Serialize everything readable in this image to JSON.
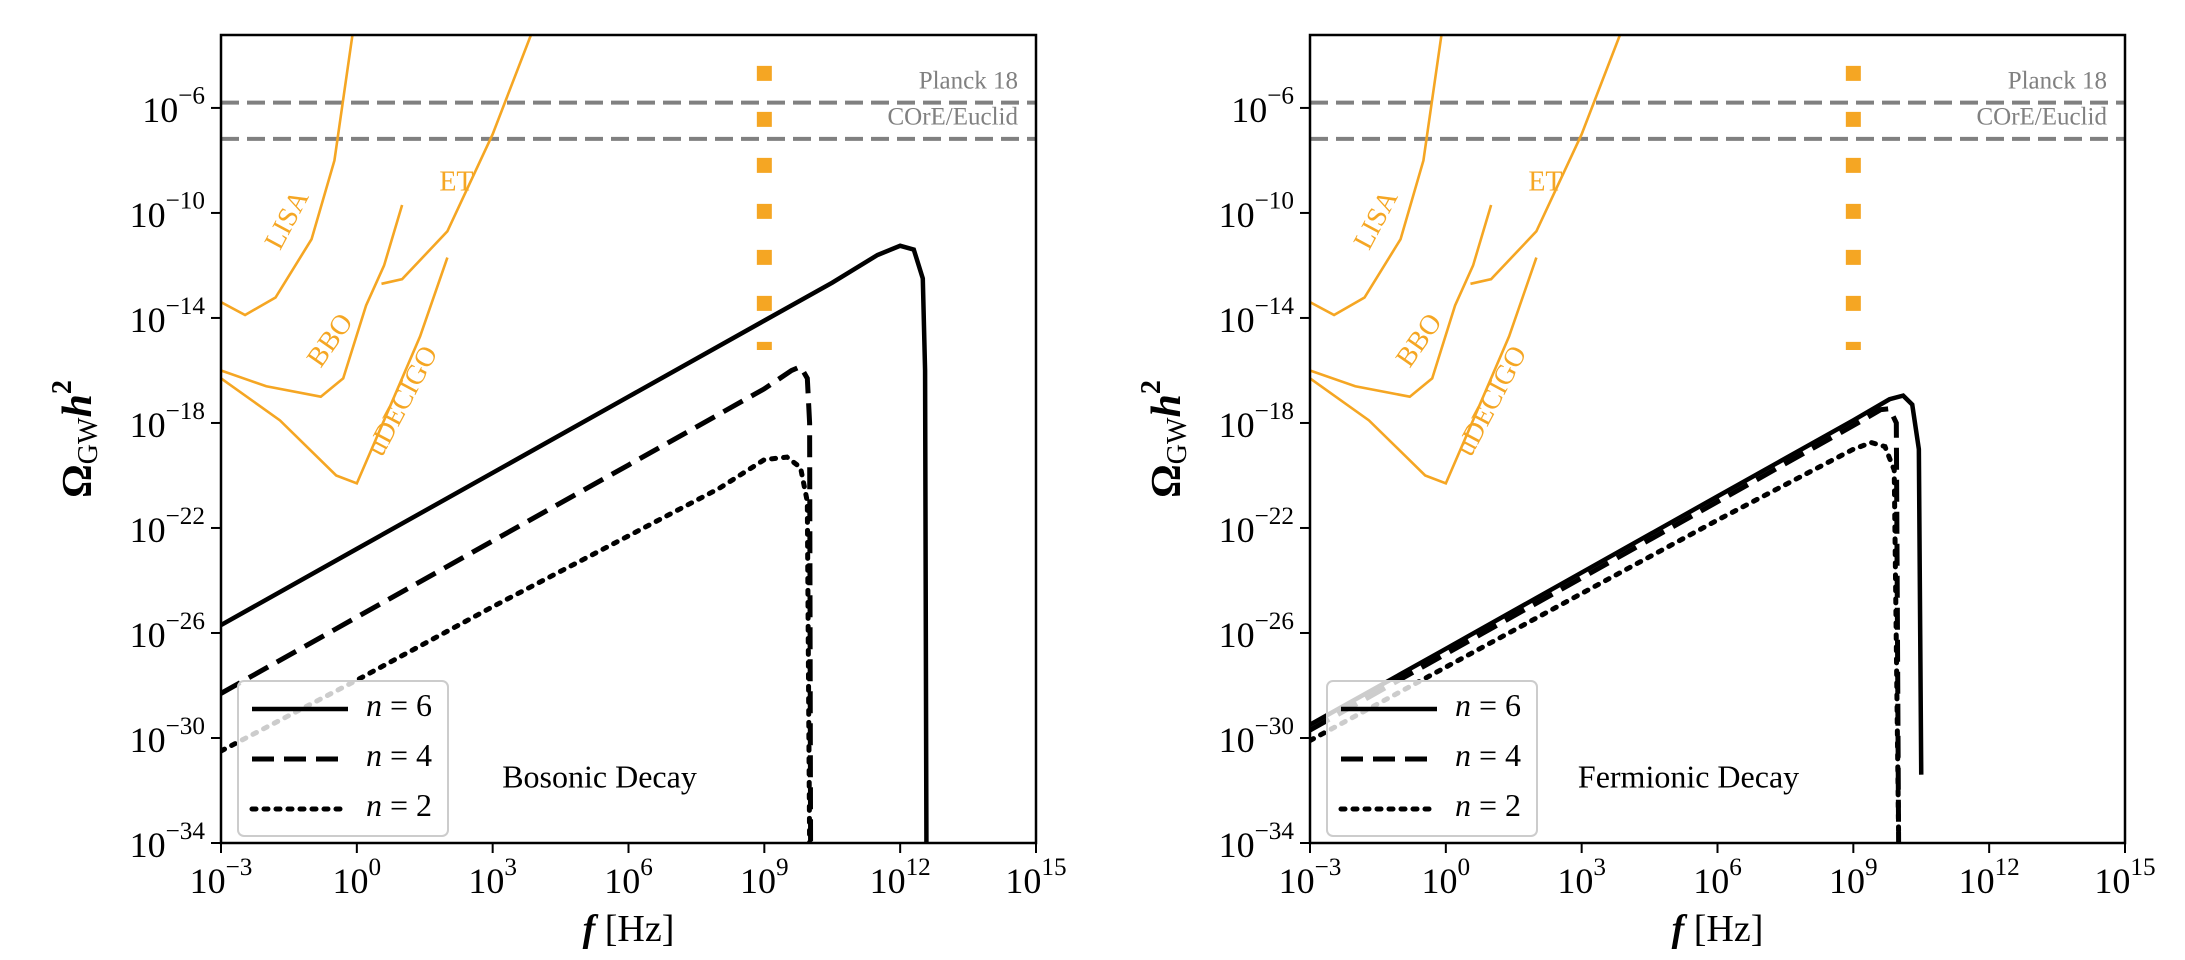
{
  "chart_data": [
    {
      "type": "line",
      "xscale": "log",
      "yscale": "log",
      "xlim": [
        0.001,
        1000000000000000.0
      ],
      "ylim": [
        1e-34,
        0.0006
      ],
      "xticks": [
        {
          "value": 0.001,
          "label": "10−3"
        },
        {
          "value": 1,
          "label": "100"
        },
        {
          "value": 1000.0,
          "label": "103"
        },
        {
          "value": 1000000.0,
          "label": "106"
        },
        {
          "value": 1000000000.0,
          "label": "109"
        },
        {
          "value": 1000000000000.0,
          "label": "1012"
        },
        {
          "value": 1000000000000000.0,
          "label": "1015"
        }
      ],
      "yticks": [
        {
          "value": 1e-34,
          "label": "10−34"
        },
        {
          "value": 1e-30,
          "label": "10−30"
        },
        {
          "value": 1e-26,
          "label": "10−26"
        },
        {
          "value": 1e-22,
          "label": "10−22"
        },
        {
          "value": 1e-18,
          "label": "10−18"
        },
        {
          "value": 1e-14,
          "label": "10−14"
        },
        {
          "value": 1e-10,
          "label": "10−10"
        },
        {
          "value": 1e-06,
          "label": "10−6"
        }
      ],
      "xlabel": "f [Hz]",
      "ylabel": "ΩGWh2",
      "annotation": "Bosonic Decay",
      "legend": "lower left",
      "series": [
        {
          "name": "n = 6",
          "color": "#000000",
          "linestyle": "solid",
          "x": [
            0.001,
            1,
            1000.0,
            1000000.0,
            1000000000.0,
            31600000000.0,
            316000000000.0,
            1000000000000.0,
            2000000000000.0,
            3160000000000.0,
            3550000000000.0,
            3800000000000.0
          ],
          "values": [
            2e-26,
            1.6e-23,
            1.26e-20,
            1e-17,
            7.9e-15,
            2.2e-13,
            2.5e-12,
            5.6e-12,
            4e-12,
            3.2e-13,
            1e-16,
            1e-34
          ]
        },
        {
          "name": "n = 4",
          "color": "#000000",
          "linestyle": "dashed",
          "x": [
            0.001,
            1,
            1000.0,
            1000000.0,
            1000000000.0,
            4000000000.0,
            6300000000.0,
            8900000000.0,
            10000000000.0,
            10500000000.0
          ],
          "values": [
            5e-29,
            4e-26,
            3.2e-23,
            2.5e-20,
            2e-17,
            1e-16,
            1.4e-16,
            5e-17,
            1e-18,
            1e-34
          ]
        },
        {
          "name": "n = 2",
          "color": "#000000",
          "linestyle": "dotted",
          "x": [
            0.001,
            1,
            1000.0,
            1000000.0,
            100000000.0,
            1000000000.0,
            3160000000.0,
            6300000000.0,
            8900000000.0,
            10000000000.0
          ],
          "values": [
            3.2e-31,
            1.6e-28,
            1e-25,
            5e-23,
            3.2e-21,
            4e-20,
            5e-20,
            2e-20,
            1e-21,
            1e-34
          ]
        }
      ],
      "sensitivity_curves": [
        {
          "name": "LISA",
          "color": "#f5a623",
          "x": [
            0.001,
            0.0034,
            0.016,
            0.1,
            0.32,
            0.8
          ],
          "values": [
            4e-14,
            1.3e-14,
            6e-14,
            1e-11,
            1e-08,
            0.0006
          ]
        },
        {
          "name": "BBO",
          "color": "#f5a623",
          "x": [
            0.001,
            0.01,
            0.16,
            0.5,
            1.6,
            4,
            10
          ],
          "values": [
            1e-16,
            2.5e-17,
            1e-17,
            5e-17,
            3e-14,
            1e-12,
            2e-10
          ]
        },
        {
          "name": "ET",
          "color": "#f5a623",
          "x": [
            3.5,
            10,
            100,
            1000,
            7000
          ],
          "values": [
            2e-13,
            3e-13,
            2e-11,
            1e-07,
            0.0006
          ]
        },
        {
          "name": "uDECIGO",
          "color": "#f5a623",
          "x": [
            0.001,
            0.02,
            0.35,
            1,
            3,
            25,
            100
          ],
          "values": [
            5e-17,
            1.26e-18,
            1e-20,
            5e-21,
            4e-19,
            2e-15,
            2e-12
          ]
        }
      ],
      "bounds": [
        {
          "name": "Planck 18",
          "color": "#808080",
          "value": 1.6e-06
        },
        {
          "name": "COrE/Euclid",
          "color": "#808080",
          "value": 6.6e-08
        }
      ],
      "frequency_marker": {
        "color": "#f5a623",
        "x": 1000000000.0,
        "y_range": [
          6e-16,
          4e-05
        ]
      }
    },
    {
      "type": "line",
      "xscale": "log",
      "yscale": "log",
      "xlim": [
        0.001,
        1000000000000000.0
      ],
      "ylim": [
        1e-34,
        0.0006
      ],
      "xticks": [
        {
          "value": 0.001,
          "label": "10−3"
        },
        {
          "value": 1,
          "label": "100"
        },
        {
          "value": 1000.0,
          "label": "103"
        },
        {
          "value": 1000000.0,
          "label": "106"
        },
        {
          "value": 1000000000.0,
          "label": "109"
        },
        {
          "value": 1000000000000.0,
          "label": "1012"
        },
        {
          "value": 1000000000000000.0,
          "label": "1015"
        }
      ],
      "yticks": [
        {
          "value": 1e-34,
          "label": "10−34"
        },
        {
          "value": 1e-30,
          "label": "10−30"
        },
        {
          "value": 1e-26,
          "label": "10−26"
        },
        {
          "value": 1e-22,
          "label": "10−22"
        },
        {
          "value": 1e-18,
          "label": "10−18"
        },
        {
          "value": 1e-14,
          "label": "10−14"
        },
        {
          "value": 1e-10,
          "label": "10−10"
        },
        {
          "value": 1e-06,
          "label": "10−6"
        }
      ],
      "xlabel": "f [Hz]",
      "ylabel": "ΩGWh2",
      "annotation": "Fermionic Decay",
      "legend": "lower left",
      "series": [
        {
          "name": "n = 6",
          "color": "#000000",
          "linestyle": "solid",
          "x": [
            0.001,
            1,
            1000.0,
            1000000.0,
            1000000000.0,
            6300000000.0,
            12600000000.0,
            20000000000.0,
            28000000000.0,
            31600000000.0
          ],
          "values": [
            3.2e-30,
            2.5e-27,
            2e-24,
            1.6e-21,
            1.26e-18,
            8e-18,
            1.1e-17,
            5e-18,
            1e-19,
            4e-32
          ]
        },
        {
          "name": "n = 4",
          "color": "#000000",
          "linestyle": "dashed",
          "x": [
            0.001,
            1,
            1000.0,
            1000000.0,
            1000000000.0,
            4000000000.0,
            6300000000.0,
            8900000000.0,
            10000000000.0
          ],
          "values": [
            2e-30,
            1.6e-27,
            1.26e-24,
            1e-21,
            8e-19,
            3.2e-18,
            3.5e-18,
            1e-18,
            1e-34
          ]
        },
        {
          "name": "n = 2",
          "color": "#000000",
          "linestyle": "dotted",
          "x": [
            0.001,
            1,
            1000.0,
            1000000.0,
            1000000000.0,
            2500000000.0,
            5000000000.0,
            8000000000.0,
            10000000000.0
          ],
          "values": [
            8e-31,
            5e-28,
            3.2e-25,
            2e-22,
            1e-19,
            1.8e-19,
            1.26e-19,
            1.6e-20,
            2e-34
          ]
        }
      ],
      "sensitivity_curves": [
        {
          "name": "LISA",
          "color": "#f5a623",
          "x": [
            0.001,
            0.0034,
            0.016,
            0.1,
            0.32,
            0.8
          ],
          "values": [
            4e-14,
            1.3e-14,
            6e-14,
            1e-11,
            1e-08,
            0.0006
          ]
        },
        {
          "name": "BBO",
          "color": "#f5a623",
          "x": [
            0.001,
            0.01,
            0.16,
            0.5,
            1.6,
            4,
            10
          ],
          "values": [
            1e-16,
            2.5e-17,
            1e-17,
            5e-17,
            3e-14,
            1e-12,
            2e-10
          ]
        },
        {
          "name": "ET",
          "color": "#f5a623",
          "x": [
            3.5,
            10,
            100,
            1000,
            7000
          ],
          "values": [
            2e-13,
            3e-13,
            2e-11,
            1e-07,
            0.0006
          ]
        },
        {
          "name": "uDECIGO",
          "color": "#f5a623",
          "x": [
            0.001,
            0.02,
            0.35,
            1,
            3,
            25,
            100
          ],
          "values": [
            5e-17,
            1.26e-18,
            1e-20,
            5e-21,
            4e-19,
            2e-15,
            2e-12
          ]
        }
      ],
      "bounds": [
        {
          "name": "Planck 18",
          "color": "#808080",
          "value": 1.6e-06
        },
        {
          "name": "COrE/Euclid",
          "color": "#808080",
          "value": 6.6e-08
        }
      ],
      "frequency_marker": {
        "color": "#f5a623",
        "x": 1000000000.0,
        "y_range": [
          6e-16,
          4e-05
        ]
      }
    }
  ]
}
